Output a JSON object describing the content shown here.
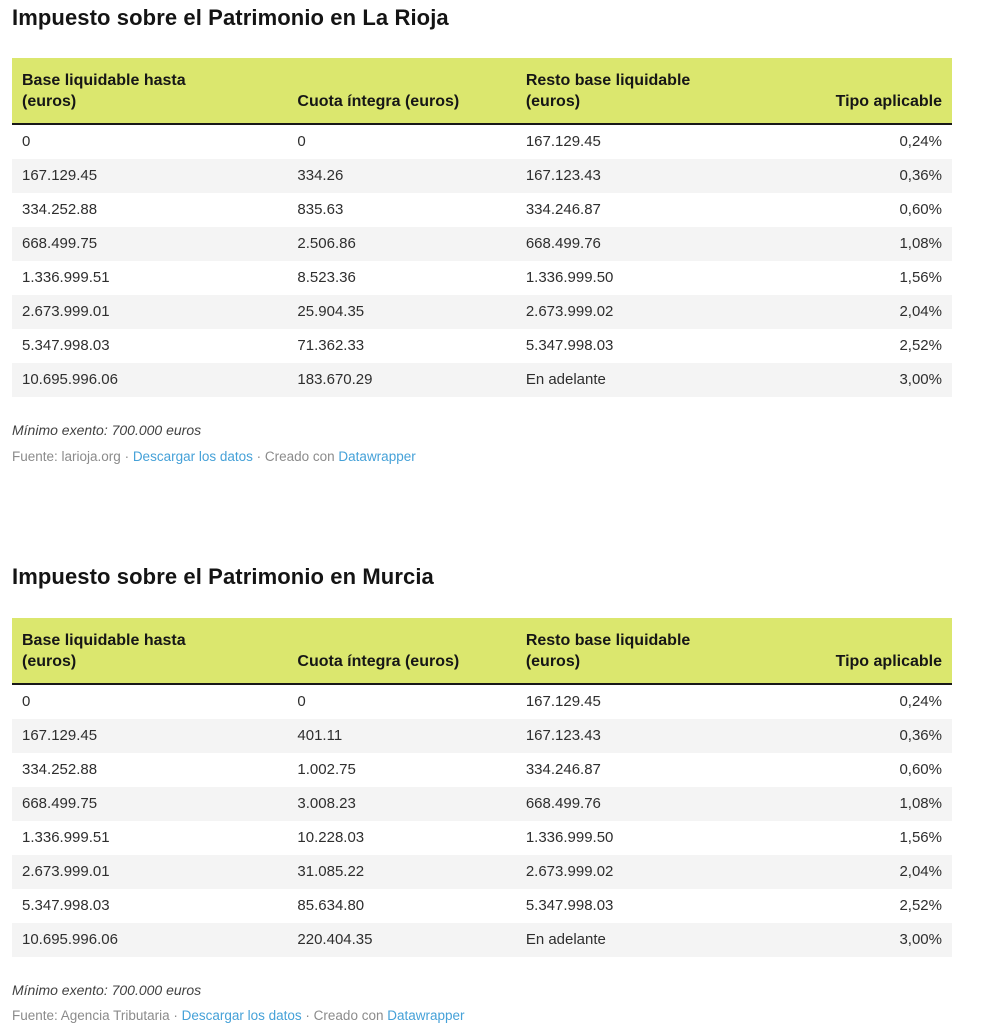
{
  "chart_data": [
    {
      "type": "table",
      "title": "Impuesto sobre el Patrimonio en La Rioja",
      "columns": [
        [
          "Base liquidable hasta",
          "(euros)"
        ],
        [
          "Cuota íntegra (euros)"
        ],
        [
          "Resto base liquidable",
          "(euros)"
        ],
        [
          "Tipo aplicable"
        ]
      ],
      "rows": [
        [
          "0",
          "0",
          "167.129.45",
          "0,24%"
        ],
        [
          "167.129.45",
          "334.26",
          "167.123.43",
          "0,36%"
        ],
        [
          "334.252.88",
          "835.63",
          "334.246.87",
          "0,60%"
        ],
        [
          "668.499.75",
          "2.506.86",
          "668.499.76",
          "1,08%"
        ],
        [
          "1.336.999.51",
          "8.523.36",
          "1.336.999.50",
          "1,56%"
        ],
        [
          "2.673.999.01",
          "25.904.35",
          "2.673.999.02",
          "2,04%"
        ],
        [
          "5.347.998.03",
          "71.362.33",
          "5.347.998.03",
          "2,52%"
        ],
        [
          "10.695.996.06",
          "183.670.29",
          "En adelante",
          "3,00%"
        ]
      ],
      "footnote": "Mínimo exento: 700.000 euros",
      "source": {
        "prefix": "Fuente: larioja.org",
        "separator": " · ",
        "download_label": "Descargar los datos",
        "created_with": "Creado con ",
        "brand_label": "Datawrapper"
      }
    },
    {
      "type": "table",
      "title": "Impuesto sobre el Patrimonio en Murcia",
      "columns": [
        [
          "Base liquidable hasta",
          "(euros)"
        ],
        [
          "Cuota íntegra (euros)"
        ],
        [
          "Resto base liquidable",
          "(euros)"
        ],
        [
          "Tipo aplicable"
        ]
      ],
      "rows": [
        [
          "0",
          "0",
          "167.129.45",
          "0,24%"
        ],
        [
          "167.129.45",
          "401.11",
          "167.123.43",
          "0,36%"
        ],
        [
          "334.252.88",
          "1.002.75",
          "334.246.87",
          "0,60%"
        ],
        [
          "668.499.75",
          "3.008.23",
          "668.499.76",
          "1,08%"
        ],
        [
          "1.336.999.51",
          "10.228.03",
          "1.336.999.50",
          "1,56%"
        ],
        [
          "2.673.999.01",
          "31.085.22",
          "2.673.999.02",
          "2,04%"
        ],
        [
          "5.347.998.03",
          "85.634.80",
          "5.347.998.03",
          "2,52%"
        ],
        [
          "10.695.996.06",
          "220.404.35",
          "En adelante",
          "3,00%"
        ]
      ],
      "footnote": "Mínimo exento: 700.000 euros",
      "source": {
        "prefix": "Fuente: Agencia Tributaria",
        "separator": " · ",
        "download_label": "Descargar los datos",
        "created_with": "Creado con ",
        "brand_label": "Datawrapper"
      }
    }
  ],
  "colors": {
    "header_background": "#dbe76e",
    "header_border": "#181818",
    "row_stripe": "#f4f4f4",
    "link_blue": "#45a1d8",
    "body_text": "#2e2e2e",
    "source_text": "#8b8b8b"
  }
}
